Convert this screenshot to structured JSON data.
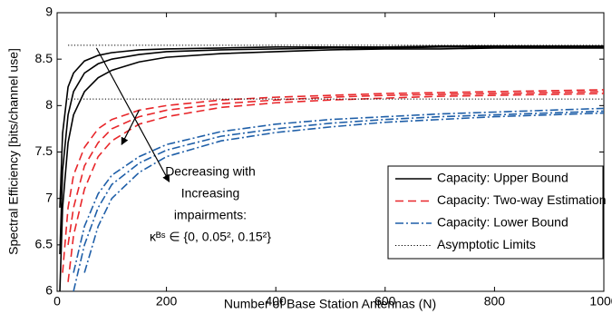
{
  "chart_data": {
    "type": "line",
    "xlabel": "Number of Base Station Antennas (N)",
    "ylabel": "Spectral Efficiency [bits/channel use]",
    "x": [
      5,
      10,
      20,
      30,
      50,
      75,
      100,
      150,
      200,
      300,
      400,
      500,
      600,
      700,
      800,
      900,
      1000
    ],
    "xlim": [
      0,
      1000
    ],
    "xticks": [
      0,
      200,
      400,
      600,
      800,
      1000
    ],
    "ylim": [
      6,
      9
    ],
    "yticks": [
      6,
      6.5,
      7,
      7.5,
      8,
      8.5,
      9
    ],
    "legend": "lower right",
    "annotation": [
      "Decreasing with",
      "Increasing",
      "impairments:",
      "κᴮˢ ∈ {0, 0.05², 0.15²}"
    ],
    "series": [
      {
        "name": "Capacity: Upper Bound",
        "color": "#000000",
        "dash": "solid",
        "values": [
          6.9,
          7.7,
          8.2,
          8.35,
          8.48,
          8.54,
          8.57,
          8.6,
          8.61,
          8.62,
          8.63,
          8.63,
          8.63,
          8.64,
          8.64,
          8.64,
          8.64
        ]
      },
      {
        "color": "#000000",
        "dash": "solid",
        "values": [
          6.4,
          7.3,
          7.9,
          8.15,
          8.35,
          8.45,
          8.5,
          8.55,
          8.58,
          8.6,
          8.61,
          8.62,
          8.62,
          8.63,
          8.63,
          8.63,
          8.63
        ]
      },
      {
        "color": "#000000",
        "dash": "solid",
        "values": [
          6.0,
          6.9,
          7.6,
          7.9,
          8.15,
          8.3,
          8.38,
          8.47,
          8.52,
          8.56,
          8.58,
          8.6,
          8.61,
          8.61,
          8.62,
          8.62,
          8.62
        ]
      },
      {
        "name": "Capacity: Two-way Estimation",
        "color": "#e8262a",
        "dash": "dashed",
        "values": [
          null,
          6.2,
          6.9,
          7.25,
          7.55,
          7.75,
          7.85,
          7.95,
          8.0,
          8.06,
          8.09,
          8.11,
          8.13,
          8.14,
          8.15,
          8.16,
          8.17
        ]
      },
      {
        "color": "#e8262a",
        "dash": "dashed",
        "values": [
          null,
          null,
          6.5,
          6.9,
          7.35,
          7.6,
          7.75,
          7.88,
          7.95,
          8.02,
          8.06,
          8.09,
          8.11,
          8.12,
          8.13,
          8.14,
          8.15
        ]
      },
      {
        "color": "#e8262a",
        "dash": "dashed",
        "values": [
          null,
          null,
          6.1,
          6.6,
          7.1,
          7.45,
          7.62,
          7.8,
          7.88,
          7.98,
          8.03,
          8.06,
          8.08,
          8.1,
          8.11,
          8.12,
          8.13
        ]
      },
      {
        "name": "Capacity: Lower Bound",
        "color": "#1f5fa8",
        "dash": "dashdot",
        "values": [
          null,
          null,
          null,
          6.2,
          6.7,
          7.05,
          7.25,
          7.45,
          7.58,
          7.72,
          7.8,
          7.85,
          7.88,
          7.91,
          7.93,
          7.95,
          7.97
        ]
      },
      {
        "color": "#1f5fa8",
        "dash": "dashdot",
        "values": [
          null,
          null,
          null,
          6.0,
          6.5,
          6.9,
          7.15,
          7.38,
          7.52,
          7.67,
          7.75,
          7.81,
          7.85,
          7.88,
          7.9,
          7.92,
          7.94
        ]
      },
      {
        "color": "#1f5fa8",
        "dash": "dashdot",
        "values": [
          null,
          null,
          null,
          null,
          6.2,
          6.7,
          7.0,
          7.28,
          7.45,
          7.62,
          7.71,
          7.77,
          7.82,
          7.85,
          7.88,
          7.9,
          7.92
        ]
      },
      {
        "name": "Asymptotic Limits",
        "color": "#000000",
        "dash": "dotted",
        "values": [
          null,
          null,
          8.65,
          8.65,
          8.65,
          8.65,
          8.65,
          8.65,
          8.65,
          8.65,
          8.65,
          8.65,
          8.65,
          8.65,
          8.65,
          8.65,
          8.65
        ]
      },
      {
        "color": "#000000",
        "dash": "dotted",
        "values": [
          null,
          null,
          8.07,
          8.07,
          8.07,
          8.07,
          8.07,
          8.07,
          8.07,
          8.07,
          8.07,
          8.07,
          8.07,
          8.07,
          8.07,
          8.07,
          8.07
        ]
      }
    ]
  }
}
